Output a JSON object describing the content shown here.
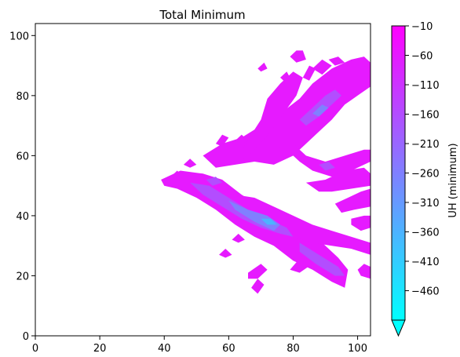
{
  "chart_data": {
    "type": "heatmap",
    "title": "Total Minimum",
    "xlabel": "",
    "ylabel": "",
    "xlim": [
      0,
      104
    ],
    "ylim": [
      0,
      104
    ],
    "x_ticks": [
      0,
      20,
      40,
      60,
      80,
      100
    ],
    "y_ticks": [
      0,
      20,
      40,
      60,
      80,
      100
    ],
    "colorbar": {
      "label": "UH (minimum)",
      "range": [
        -510,
        -10
      ],
      "ticks": [
        -10,
        -60,
        -110,
        -160,
        -210,
        -260,
        -310,
        -360,
        -410,
        -460
      ],
      "extend": "min",
      "colors": {
        "high": "#ff00ff",
        "low": "#00ffff"
      }
    },
    "regions": [
      {
        "value": -60,
        "points": [
          [
            39,
            52
          ],
          [
            45,
            55
          ],
          [
            52,
            54
          ],
          [
            58,
            52
          ],
          [
            64,
            47
          ],
          [
            70,
            43
          ],
          [
            76,
            40
          ],
          [
            82,
            36
          ],
          [
            88,
            32
          ],
          [
            94,
            26
          ],
          [
            97,
            22
          ],
          [
            96,
            16
          ],
          [
            92,
            18
          ],
          [
            86,
            22
          ],
          [
            80,
            25
          ],
          [
            74,
            30
          ],
          [
            68,
            33
          ],
          [
            62,
            37
          ],
          [
            56,
            42
          ],
          [
            50,
            46
          ],
          [
            44,
            49
          ],
          [
            40,
            50
          ]
        ]
      },
      {
        "value": -60,
        "points": [
          [
            52,
            60
          ],
          [
            58,
            64
          ],
          [
            64,
            66
          ],
          [
            70,
            70
          ],
          [
            76,
            74
          ],
          [
            82,
            79
          ],
          [
            86,
            84
          ],
          [
            92,
            89
          ],
          [
            98,
            92
          ],
          [
            102,
            93
          ],
          [
            104,
            91
          ],
          [
            104,
            83
          ],
          [
            100,
            80
          ],
          [
            96,
            77
          ],
          [
            92,
            72
          ],
          [
            88,
            68
          ],
          [
            84,
            64
          ],
          [
            80,
            60
          ],
          [
            74,
            57
          ],
          [
            68,
            58
          ],
          [
            62,
            57
          ],
          [
            56,
            56
          ]
        ]
      },
      {
        "value": -60,
        "points": [
          [
            63,
            60
          ],
          [
            67,
            67
          ],
          [
            70,
            72
          ],
          [
            72,
            79
          ],
          [
            76,
            84
          ],
          [
            80,
            88
          ],
          [
            83,
            86
          ],
          [
            81,
            80
          ],
          [
            77,
            74
          ],
          [
            73,
            68
          ],
          [
            69,
            63
          ],
          [
            65,
            59
          ]
        ]
      },
      {
        "value": -60,
        "points": [
          [
            79,
            93
          ],
          [
            81,
            95
          ],
          [
            83,
            95
          ],
          [
            84,
            92
          ],
          [
            81,
            91
          ]
        ]
      },
      {
        "value": -60,
        "points": [
          [
            86,
            89
          ],
          [
            89,
            92
          ],
          [
            92,
            90
          ],
          [
            89,
            87
          ]
        ]
      },
      {
        "value": -60,
        "points": [
          [
            91,
            92
          ],
          [
            94,
            93
          ],
          [
            96,
            91
          ],
          [
            93,
            90
          ]
        ]
      },
      {
        "value": -60,
        "points": [
          [
            83,
            86
          ],
          [
            85,
            90
          ],
          [
            87,
            89
          ],
          [
            85,
            85
          ]
        ]
      },
      {
        "value": -60,
        "points": [
          [
            69,
            89
          ],
          [
            71,
            91
          ],
          [
            72,
            89
          ],
          [
            70,
            88
          ]
        ]
      },
      {
        "value": -60,
        "points": [
          [
            76,
            86
          ],
          [
            78,
            88
          ],
          [
            79,
            86
          ],
          [
            77,
            85
          ]
        ]
      },
      {
        "value": -60,
        "points": [
          [
            80,
            64
          ],
          [
            84,
            60
          ],
          [
            90,
            58
          ],
          [
            96,
            60
          ],
          [
            102,
            62
          ],
          [
            104,
            62
          ],
          [
            104,
            58
          ],
          [
            98,
            55
          ],
          [
            92,
            53
          ],
          [
            86,
            55
          ],
          [
            82,
            58
          ],
          [
            79,
            61
          ]
        ]
      },
      {
        "value": -60,
        "points": [
          [
            84,
            51
          ],
          [
            90,
            52
          ],
          [
            96,
            55
          ],
          [
            102,
            56
          ],
          [
            104,
            54
          ],
          [
            104,
            50
          ],
          [
            98,
            49
          ],
          [
            92,
            48
          ],
          [
            88,
            48
          ]
        ]
      },
      {
        "value": -60,
        "points": [
          [
            62,
            47
          ],
          [
            68,
            46
          ],
          [
            74,
            43
          ],
          [
            80,
            40
          ],
          [
            86,
            37
          ],
          [
            92,
            35
          ],
          [
            98,
            33
          ],
          [
            104,
            31
          ],
          [
            104,
            27
          ],
          [
            98,
            29
          ],
          [
            92,
            30
          ],
          [
            86,
            31
          ],
          [
            80,
            33
          ],
          [
            74,
            36
          ],
          [
            68,
            38
          ],
          [
            63,
            41
          ],
          [
            61,
            44
          ]
        ]
      },
      {
        "value": -60,
        "points": [
          [
            93,
            44
          ],
          [
            97,
            46
          ],
          [
            101,
            48
          ],
          [
            104,
            49
          ],
          [
            104,
            43
          ],
          [
            99,
            42
          ],
          [
            95,
            41
          ]
        ]
      },
      {
        "value": -60,
        "points": [
          [
            98,
            39
          ],
          [
            102,
            40
          ],
          [
            104,
            40
          ],
          [
            104,
            36
          ],
          [
            101,
            35
          ],
          [
            98,
            37
          ]
        ]
      },
      {
        "value": -60,
        "points": [
          [
            79,
            22
          ],
          [
            83,
            27
          ],
          [
            86,
            24
          ],
          [
            82,
            21
          ]
        ]
      },
      {
        "value": -60,
        "points": [
          [
            66,
            21
          ],
          [
            70,
            24
          ],
          [
            72,
            22
          ],
          [
            69,
            19
          ],
          [
            66,
            19
          ]
        ]
      },
      {
        "value": -60,
        "points": [
          [
            67,
            16
          ],
          [
            69,
            19
          ],
          [
            71,
            17
          ],
          [
            69,
            14
          ]
        ]
      },
      {
        "value": -60,
        "points": [
          [
            57,
            27
          ],
          [
            59,
            29
          ],
          [
            61,
            27
          ],
          [
            59,
            26
          ]
        ]
      },
      {
        "value": -60,
        "points": [
          [
            61,
            32
          ],
          [
            63,
            34
          ],
          [
            65,
            32
          ],
          [
            63,
            31
          ]
        ]
      },
      {
        "value": -60,
        "points": [
          [
            42,
            53
          ],
          [
            44,
            55
          ],
          [
            46,
            53
          ],
          [
            44,
            52
          ]
        ]
      },
      {
        "value": -60,
        "points": [
          [
            46,
            57
          ],
          [
            48,
            59
          ],
          [
            50,
            57
          ],
          [
            48,
            56
          ]
        ]
      },
      {
        "value": -60,
        "points": [
          [
            62,
            65
          ],
          [
            64,
            67
          ],
          [
            66,
            65
          ],
          [
            64,
            64
          ]
        ]
      },
      {
        "value": -60,
        "points": [
          [
            75,
            63
          ],
          [
            77,
            66
          ],
          [
            79,
            64
          ],
          [
            77,
            62
          ]
        ]
      },
      {
        "value": -60,
        "points": [
          [
            100,
            22
          ],
          [
            102,
            24
          ],
          [
            104,
            23
          ],
          [
            104,
            19
          ],
          [
            101,
            20
          ]
        ]
      },
      {
        "value": -60,
        "points": [
          [
            56,
            64
          ],
          [
            58,
            67
          ],
          [
            60,
            66
          ],
          [
            58,
            63
          ]
        ]
      },
      {
        "value": -160,
        "points": [
          [
            48,
            51
          ],
          [
            54,
            50
          ],
          [
            60,
            46
          ],
          [
            66,
            42
          ],
          [
            72,
            39
          ],
          [
            78,
            36
          ],
          [
            80,
            33
          ],
          [
            76,
            34
          ],
          [
            70,
            36
          ],
          [
            64,
            39
          ],
          [
            58,
            43
          ],
          [
            52,
            47
          ]
        ]
      },
      {
        "value": -160,
        "points": [
          [
            82,
            72
          ],
          [
            86,
            76
          ],
          [
            90,
            80
          ],
          [
            93,
            82
          ],
          [
            95,
            80
          ],
          [
            92,
            77
          ],
          [
            88,
            73
          ],
          [
            84,
            70
          ]
        ]
      },
      {
        "value": -160,
        "points": [
          [
            82,
            31
          ],
          [
            88,
            27
          ],
          [
            94,
            23
          ],
          [
            96,
            20
          ],
          [
            93,
            20
          ],
          [
            87,
            24
          ],
          [
            82,
            28
          ]
        ]
      },
      {
        "value": -160,
        "points": [
          [
            53,
            52
          ],
          [
            56,
            53
          ],
          [
            58,
            51
          ],
          [
            55,
            50
          ]
        ]
      },
      {
        "value": -160,
        "points": [
          [
            88,
            57
          ],
          [
            91,
            58
          ],
          [
            93,
            56
          ],
          [
            90,
            55
          ]
        ]
      },
      {
        "value": -260,
        "points": [
          [
            60,
            45
          ],
          [
            66,
            42
          ],
          [
            72,
            40
          ],
          [
            76,
            37
          ],
          [
            74,
            35
          ],
          [
            68,
            38
          ],
          [
            62,
            42
          ]
        ]
      },
      {
        "value": -260,
        "points": [
          [
            86,
            74
          ],
          [
            89,
            77
          ],
          [
            91,
            76
          ],
          [
            88,
            73
          ]
        ]
      },
      {
        "value": -360,
        "points": [
          [
            70,
            39
          ],
          [
            73,
            39
          ],
          [
            75,
            37
          ],
          [
            72,
            37
          ]
        ]
      }
    ]
  }
}
